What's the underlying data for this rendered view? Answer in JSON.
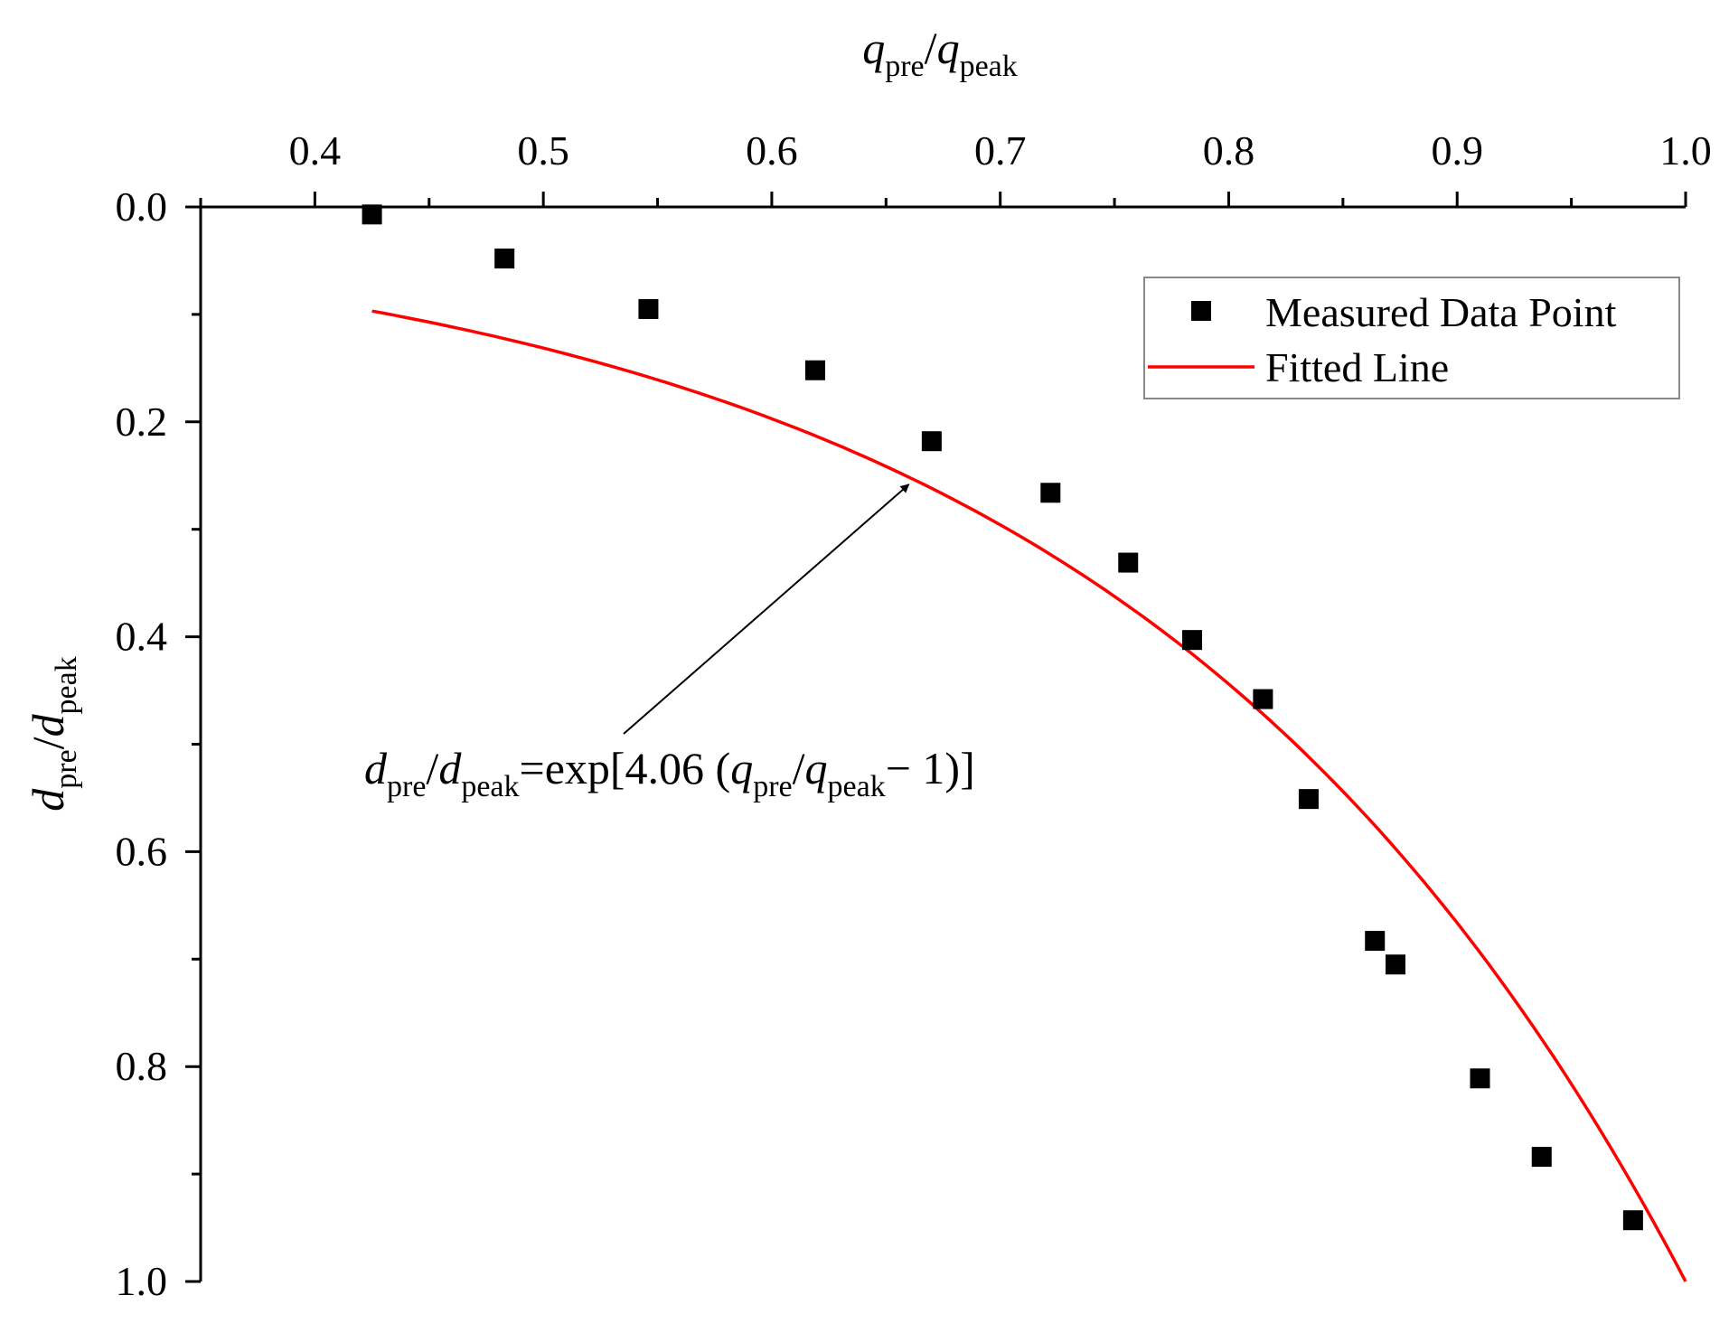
{
  "chart_data": {
    "type": "scatter",
    "x_axis": {
      "label": {
        "main": "q",
        "sub": "pre",
        "slash": "/",
        "main2": "q",
        "sub2": "peak"
      },
      "range": [
        0.35,
        1.0
      ],
      "ticks": [
        0.4,
        0.5,
        0.6,
        0.7,
        0.8,
        0.9,
        1.0
      ],
      "tick_labels": [
        "0.4",
        "0.5",
        "0.6",
        "0.7",
        "0.8",
        "0.9",
        "1.0"
      ],
      "position": "top"
    },
    "y_axis": {
      "label": {
        "main": "d",
        "sub": "pre",
        "slash": "/",
        "main2": "d",
        "sub2": "peak"
      },
      "range": [
        0.0,
        1.0
      ],
      "inverted": true,
      "ticks": [
        0.0,
        0.2,
        0.4,
        0.6,
        0.8,
        1.0
      ],
      "tick_labels": [
        "0.0",
        "0.2",
        "0.4",
        "0.6",
        "0.8",
        "1.0"
      ]
    },
    "series": [
      {
        "name": "Measured Data Point",
        "kind": "scatter",
        "marker": "square",
        "color": "#000000",
        "points": [
          [
            0.425,
            0.007
          ],
          [
            0.483,
            0.048
          ],
          [
            0.546,
            0.095
          ],
          [
            0.619,
            0.152
          ],
          [
            0.67,
            0.218
          ],
          [
            0.722,
            0.266
          ],
          [
            0.756,
            0.331
          ],
          [
            0.784,
            0.403
          ],
          [
            0.815,
            0.458
          ],
          [
            0.835,
            0.551
          ],
          [
            0.864,
            0.683
          ],
          [
            0.873,
            0.705
          ],
          [
            0.91,
            0.811
          ],
          [
            0.937,
            0.884
          ],
          [
            0.977,
            0.943
          ]
        ]
      },
      {
        "name": "Fitted Line",
        "kind": "line",
        "color": "#ff0000",
        "equation_coefficient": 4.06,
        "x_range": [
          0.425,
          1.0
        ]
      }
    ],
    "legend": {
      "position": "top-right",
      "entries": [
        "Measured Data Point",
        "Fitted Line"
      ]
    },
    "annotation": {
      "parts": {
        "d1": "d",
        "pre1": "pre",
        "slash1": "/",
        "d2": "d",
        "peak1": "peak",
        "mid": "=exp[4.06 (",
        "q1": "q",
        "pre2": "pre",
        "slash2": "/",
        "q2": "q",
        "peak2": "peak",
        "tail": "− 1)]"
      },
      "arrow_target_x": 0.66
    }
  }
}
